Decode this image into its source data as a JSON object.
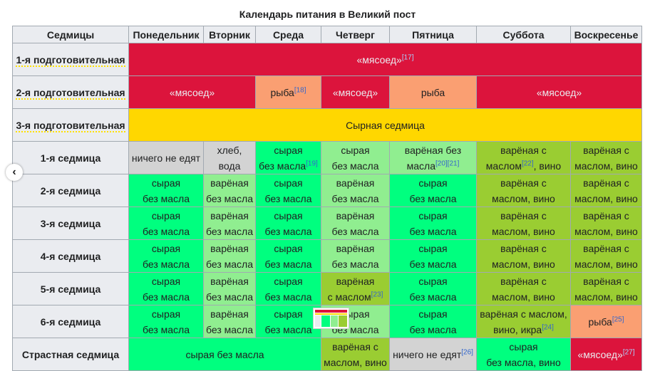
{
  "caption": "Календарь питания в Великий пост",
  "headers": [
    "Седмицы",
    "Понедельник",
    "Вторник",
    "Среда",
    "Четверг",
    "Пятница",
    "Суббота",
    "Воскресенье"
  ],
  "prep": [
    {
      "label": "1-я подготовительная",
      "cells": [
        {
          "text": "«мясоед»",
          "ref": "[17]"
        }
      ]
    },
    {
      "label": "2-я подготовительная",
      "cells": [
        {
          "text": "«мясоед»",
          "ref": ""
        },
        {
          "text": "рыба",
          "ref": "[18]"
        },
        {
          "text": "«мясоед»",
          "ref": ""
        },
        {
          "text": "рыба",
          "ref": ""
        },
        {
          "text": "«мясоед»",
          "ref": ""
        }
      ]
    },
    {
      "label": "3-я подготовительная",
      "cells": [
        {
          "text": "Сырная седмица",
          "ref": ""
        }
      ]
    }
  ],
  "weeks": [
    {
      "label": "1-я седмица",
      "cells": [
        {
          "l1": "ничего не едят",
          "l2": "",
          "ref": ""
        },
        {
          "l1": "хлеб, вода",
          "l2": "",
          "ref": ""
        },
        {
          "l1": "сырая",
          "l2": "без масла",
          "ref": "[19]"
        },
        {
          "l1": "сырая",
          "l2": "без масла",
          "ref": ""
        },
        {
          "l1": "варёная без",
          "l2": "масла",
          "ref": "[20][21]"
        },
        {
          "l1": "варёная с",
          "l2": "маслом",
          "ref": "[22]",
          "tail": ", вино"
        },
        {
          "l1": "варёная с",
          "l2": "маслом, вино",
          "ref": ""
        }
      ]
    },
    {
      "label": "2-я седмица",
      "cells": [
        {
          "l1": "сырая",
          "l2": "без масла"
        },
        {
          "l1": "варёная",
          "l2": "без масла"
        },
        {
          "l1": "сырая",
          "l2": "без масла"
        },
        {
          "l1": "варёная",
          "l2": "без масла"
        },
        {
          "l1": "сырая",
          "l2": "без масла"
        },
        {
          "l1": "варёная с",
          "l2": "маслом, вино"
        },
        {
          "l1": "варёная с",
          "l2": "маслом, вино"
        }
      ]
    },
    {
      "label": "3-я седмица",
      "cells": [
        {
          "l1": "сырая",
          "l2": "без масла"
        },
        {
          "l1": "варёная",
          "l2": "без масла"
        },
        {
          "l1": "сырая",
          "l2": "без масла"
        },
        {
          "l1": "варёная",
          "l2": "без масла"
        },
        {
          "l1": "сырая",
          "l2": "без масла"
        },
        {
          "l1": "варёная с",
          "l2": "маслом, вино"
        },
        {
          "l1": "варёная с",
          "l2": "маслом, вино"
        }
      ]
    },
    {
      "label": "4-я седмица",
      "cells": [
        {
          "l1": "сырая",
          "l2": "без масла"
        },
        {
          "l1": "варёная",
          "l2": "без масла"
        },
        {
          "l1": "сырая",
          "l2": "без масла"
        },
        {
          "l1": "варёная",
          "l2": "без масла"
        },
        {
          "l1": "сырая",
          "l2": "без масла"
        },
        {
          "l1": "варёная с",
          "l2": "маслом, вино"
        },
        {
          "l1": "варёная с",
          "l2": "маслом, вино"
        }
      ]
    },
    {
      "label": "5-я седмица",
      "cells": [
        {
          "l1": "сырая",
          "l2": "без масла"
        },
        {
          "l1": "варёная",
          "l2": "без масла"
        },
        {
          "l1": "сырая",
          "l2": "без масла"
        },
        {
          "l1": "варёная",
          "l2": "с маслом",
          "ref": "[23]"
        },
        {
          "l1": "сырая",
          "l2": "без масла"
        },
        {
          "l1": "варёная с",
          "l2": "маслом, вино"
        },
        {
          "l1": "варёная с",
          "l2": "маслом, вино"
        }
      ]
    },
    {
      "label": "6-я седмица",
      "cells": [
        {
          "l1": "сырая",
          "l2": "без масла"
        },
        {
          "l1": "варёная",
          "l2": "без масла"
        },
        {
          "l1": "сырая",
          "l2": "без масла"
        },
        {
          "l1": "сырая",
          "l2": "без масла"
        },
        {
          "l1": "сырая",
          "l2": "без масла"
        },
        {
          "l1": "варёная с маслом,",
          "l2": "вино, икра",
          "ref": "[24]"
        },
        {
          "l1": "рыба",
          "l2": "",
          "ref": "[25]"
        }
      ]
    }
  ],
  "passion": {
    "label": "Страстная седмица",
    "mon_wed": "сырая без масла",
    "thu": {
      "l1": "варёная с",
      "l2": "маслом, вино"
    },
    "fri": {
      "text": "ничего не едят",
      "ref": "[26]"
    },
    "sat": {
      "l1": "сырая",
      "l2": "без масла, вино"
    },
    "sun": {
      "text": "«мясоед»",
      "ref": "[27]"
    }
  },
  "colors": {
    "red": "#dc143c",
    "salmon": "#fa9f72",
    "yellow": "#ffd700",
    "gray": "#d3d3d3",
    "green": "#00ff7f",
    "light_green": "#90ee90",
    "olive": "#9acd32",
    "header": "#eaecf0"
  },
  "icons": {
    "nav": "chevron-left-icon",
    "thumb": "table-thumbnail-icon"
  }
}
